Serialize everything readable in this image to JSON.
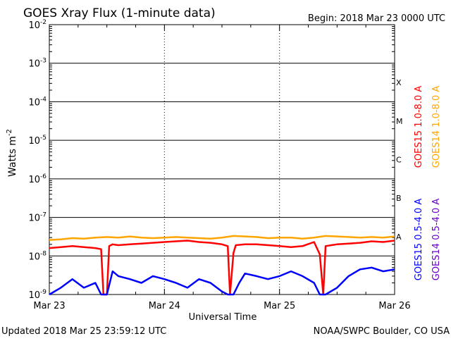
{
  "chart_data": {
    "type": "line",
    "title": "GOES Xray Flux (1-minute data)",
    "begin_label": "Begin:  2018 Mar 23 0000 UTC",
    "xlabel": "Universal Time",
    "ylabel_text": "Watts m",
    "ylabel_exponent": "-2",
    "x_ticks": [
      "Mar 23",
      "Mar 24",
      "Mar 25",
      "Mar 26"
    ],
    "xlim_days": [
      0,
      3
    ],
    "ylim_log10": [
      -9,
      -2
    ],
    "y_ticks": [
      {
        "base": "10",
        "exp": "-9"
      },
      {
        "base": "10",
        "exp": "-8"
      },
      {
        "base": "10",
        "exp": "-7"
      },
      {
        "base": "10",
        "exp": "-6"
      },
      {
        "base": "10",
        "exp": "-5"
      },
      {
        "base": "10",
        "exp": "-4"
      },
      {
        "base": "10",
        "exp": "-3"
      },
      {
        "base": "10",
        "exp": "-2"
      }
    ],
    "flare_classes": [
      {
        "label": "A",
        "log10": -8
      },
      {
        "label": "B",
        "log10": -7
      },
      {
        "label": "C",
        "log10": -6
      },
      {
        "label": "M",
        "log10": -5
      },
      {
        "label": "X",
        "log10": -4
      }
    ],
    "series": [
      {
        "name": "GOES15 1.0-8.0 A",
        "color": "#ff0000",
        "x": [
          0,
          0.1,
          0.2,
          0.3,
          0.4,
          0.45,
          0.47,
          0.5,
          0.52,
          0.55,
          0.6,
          0.7,
          0.8,
          0.9,
          1.0,
          1.1,
          1.2,
          1.3,
          1.4,
          1.5,
          1.55,
          1.57,
          1.6,
          1.62,
          1.7,
          1.8,
          1.9,
          2.0,
          2.1,
          2.2,
          2.3,
          2.35,
          2.38,
          2.4,
          2.45,
          2.5,
          2.6,
          2.7,
          2.8,
          2.9,
          3.0
        ],
        "y": [
          1.6e-08,
          1.7e-08,
          1.8e-08,
          1.7e-08,
          1.6e-08,
          1.5e-08,
          1e-09,
          1e-09,
          1.8e-08,
          2e-08,
          1.9e-08,
          2e-08,
          2.1e-08,
          2.2e-08,
          2.3e-08,
          2.4e-08,
          2.5e-08,
          2.3e-08,
          2.2e-08,
          2e-08,
          1.8e-08,
          1e-09,
          1.2e-08,
          1.9e-08,
          2e-08,
          2e-08,
          1.9e-08,
          1.8e-08,
          1.7e-08,
          1.8e-08,
          2.3e-08,
          1.1e-08,
          1e-09,
          1.8e-08,
          1.9e-08,
          2e-08,
          2.1e-08,
          2.2e-08,
          2.4e-08,
          2.3e-08,
          2.5e-08
        ]
      },
      {
        "name": "GOES14 1.0-8.0 A",
        "color": "#ffa500",
        "x": [
          0,
          0.1,
          0.2,
          0.3,
          0.4,
          0.5,
          0.6,
          0.7,
          0.8,
          0.9,
          1.0,
          1.1,
          1.2,
          1.3,
          1.4,
          1.5,
          1.6,
          1.7,
          1.8,
          1.9,
          2.0,
          2.1,
          2.2,
          2.3,
          2.4,
          2.5,
          2.6,
          2.7,
          2.8,
          2.9,
          3.0
        ],
        "y": [
          2.6e-08,
          2.7e-08,
          2.9e-08,
          2.8e-08,
          3e-08,
          3.1e-08,
          3e-08,
          3.2e-08,
          3e-08,
          2.9e-08,
          3e-08,
          3.1e-08,
          3e-08,
          2.9e-08,
          2.8e-08,
          3e-08,
          3.3e-08,
          3.2e-08,
          3.1e-08,
          2.9e-08,
          3e-08,
          3e-08,
          2.8e-08,
          3e-08,
          3.3e-08,
          3.2e-08,
          3.1e-08,
          3e-08,
          3.1e-08,
          3e-08,
          3.2e-08
        ]
      },
      {
        "name": "GOES15 0.5-4.0 A",
        "color": "#0000ff",
        "x": [
          0,
          0.1,
          0.2,
          0.3,
          0.4,
          0.45,
          0.5,
          0.55,
          0.6,
          0.7,
          0.8,
          0.9,
          1.0,
          1.1,
          1.2,
          1.3,
          1.4,
          1.5,
          1.55,
          1.6,
          1.65,
          1.7,
          1.8,
          1.9,
          2.0,
          2.1,
          2.2,
          2.3,
          2.35,
          2.4,
          2.5,
          2.6,
          2.7,
          2.8,
          2.9,
          3.0
        ],
        "y": [
          1e-09,
          1.5e-09,
          2.5e-09,
          1.5e-09,
          2e-09,
          1e-09,
          1e-09,
          4e-09,
          3e-09,
          2.5e-09,
          2e-09,
          3e-09,
          2.5e-09,
          2e-09,
          1.5e-09,
          2.5e-09,
          2e-09,
          1.2e-09,
          1e-09,
          1e-09,
          2e-09,
          3.5e-09,
          3e-09,
          2.5e-09,
          3e-09,
          4e-09,
          3e-09,
          2e-09,
          1e-09,
          1e-09,
          1.5e-09,
          3e-09,
          4.5e-09,
          5e-09,
          4e-09,
          4.5e-09
        ]
      },
      {
        "name": "GOES14 0.5-4.0 A",
        "color": "#6a00c8",
        "x": [],
        "y": []
      }
    ],
    "grid": true,
    "legend_placement": "right"
  },
  "footer": {
    "updated": "Updated 2018 Mar 25 23:59:12 UTC",
    "credit": "NOAA/SWPC Boulder, CO USA"
  }
}
